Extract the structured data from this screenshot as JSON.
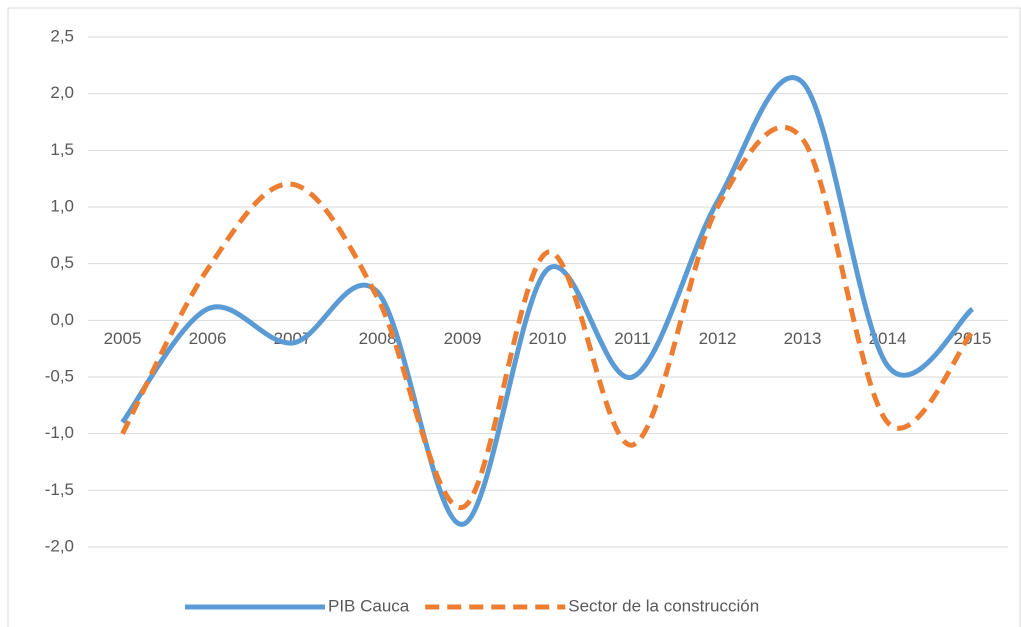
{
  "chart_data": {
    "type": "line",
    "categories": [
      "2005",
      "2006",
      "2007",
      "2008",
      "2009",
      "2010",
      "2011",
      "2012",
      "2013",
      "2014",
      "2015"
    ],
    "series": [
      {
        "name": "PIB Cauca",
        "color": "#5b9bd5",
        "dash": false,
        "values": [
          -0.9,
          0.1,
          -0.2,
          0.25,
          -1.8,
          0.45,
          -0.5,
          1.05,
          2.1,
          -0.4,
          0.1
        ]
      },
      {
        "name": "Sector de la construcción",
        "color": "#ed7d31",
        "dash": true,
        "values": [
          -1.0,
          0.45,
          1.2,
          0.2,
          -1.65,
          0.6,
          -1.1,
          1.0,
          1.6,
          -0.9,
          -0.1
        ]
      }
    ],
    "ylim": [
      -2.0,
      2.5
    ],
    "yticks": [
      {
        "value": -2.0,
        "label": "-2,0"
      },
      {
        "value": -1.5,
        "label": "-1,5"
      },
      {
        "value": -1.0,
        "label": "-1,0"
      },
      {
        "value": -0.5,
        "label": "-0,5"
      },
      {
        "value": 0.0,
        "label": "0,0"
      },
      {
        "value": 0.5,
        "label": "0,5"
      },
      {
        "value": 1.0,
        "label": "1,0"
      },
      {
        "value": 1.5,
        "label": "1,5"
      },
      {
        "value": 2.0,
        "label": "2,0"
      },
      {
        "value": 2.5,
        "label": "2,5"
      }
    ],
    "grid": true,
    "smooth": true,
    "legend": "bottom"
  }
}
